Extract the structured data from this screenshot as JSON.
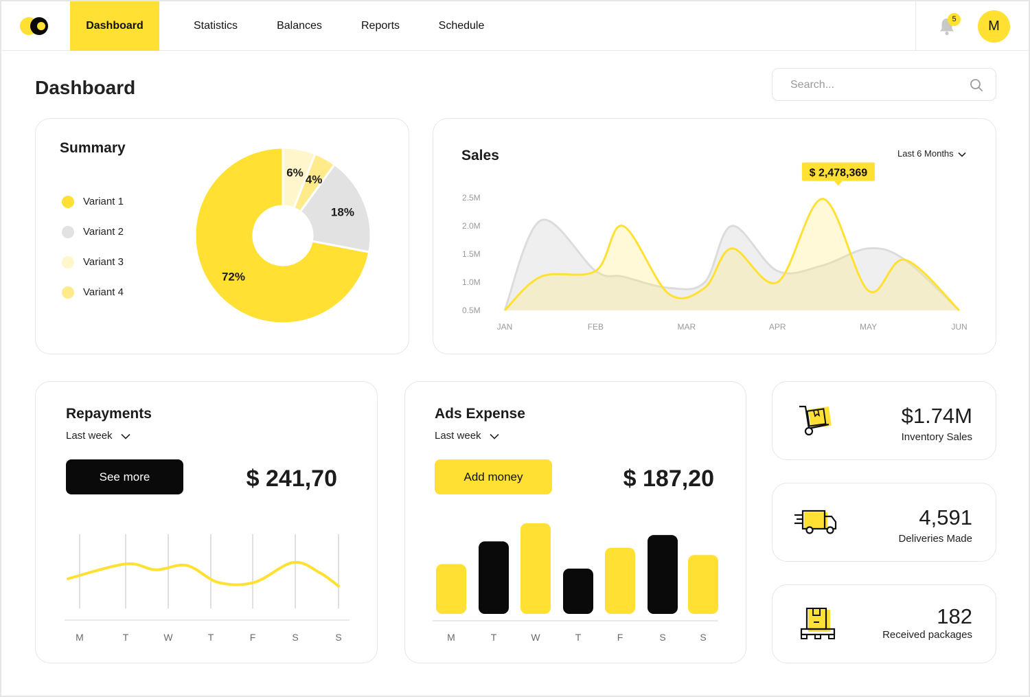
{
  "nav": {
    "items": [
      {
        "label": "Dashboard",
        "active": true
      },
      {
        "label": "Statistics",
        "active": false
      },
      {
        "label": "Balances",
        "active": false
      },
      {
        "label": "Reports",
        "active": false
      },
      {
        "label": "Schedule",
        "active": false
      }
    ],
    "notification_count": "5",
    "avatar_initial": "M"
  },
  "page": {
    "title": "Dashboard",
    "search_placeholder": "Search..."
  },
  "colors": {
    "accent": "#ffe033",
    "variant1": "#ffe033",
    "variant2": "#e2e2e2",
    "variant3": "#fff6cc",
    "variant4": "#ffeb8a",
    "black": "#0a0a0a"
  },
  "summary": {
    "title": "Summary",
    "legend": [
      "Variant 1",
      "Variant 2",
      "Variant 3",
      "Variant 4"
    ]
  },
  "sales": {
    "title": "Sales",
    "period": "Last 6 Months",
    "highlight_label": "$ 2,478,369"
  },
  "repayments": {
    "title": "Repayments",
    "period": "Last week",
    "button": "See more",
    "amount": "$ 241,70"
  },
  "ads": {
    "title": "Ads Expense",
    "period": "Last week",
    "button": "Add money",
    "amount": "$ 187,20"
  },
  "stats": [
    {
      "value": "$1.74M",
      "label": "Inventory Sales",
      "icon": "hand-truck-icon"
    },
    {
      "value": "4,591",
      "label": "Deliveries Made",
      "icon": "delivery-truck-icon"
    },
    {
      "value": "182",
      "label": "Received packages",
      "icon": "package-pallet-icon"
    }
  ],
  "chart_data": [
    {
      "type": "pie",
      "labels": [
        "72%",
        "18%",
        "4%",
        "6%"
      ],
      "values": [
        72,
        18,
        4,
        6
      ],
      "series_legend": [
        "Variant 1",
        "Variant 2",
        "Variant 4",
        "Variant 3"
      ],
      "colors": [
        "#ffe033",
        "#e2e2e2",
        "#ffeb8a",
        "#fff6cc"
      ],
      "donut": true
    },
    {
      "type": "area",
      "title": "Sales",
      "categories": [
        "JAN",
        "FEB",
        "MAR",
        "APR",
        "MAY",
        "JUN"
      ],
      "y_ticks": [
        "2.5M",
        "2.0M",
        "1.5M",
        "1.0M",
        "0.5M"
      ],
      "ylim": [
        0.5,
        2.5
      ],
      "x": [
        0,
        0.4,
        1,
        1.3,
        1.8,
        2.2,
        2.5,
        3.0,
        3.5,
        4.0,
        4.4,
        5.0
      ],
      "series": [
        {
          "values": [
            0.5,
            2.1,
            1.2,
            1.1,
            0.9,
            1.0,
            2.0,
            1.2,
            1.3,
            1.6,
            1.4,
            0.5
          ],
          "color": "#e8e8e8"
        },
        {
          "values": [
            0.5,
            1.1,
            1.2,
            2.0,
            0.8,
            0.9,
            1.6,
            1.0,
            2.48,
            0.85,
            1.4,
            0.5
          ],
          "color": "#ffe033"
        }
      ],
      "highlight": {
        "x": 3.7,
        "y": 2.48,
        "label": "$ 2,478,369"
      }
    },
    {
      "type": "line",
      "title": "Repayments",
      "categories": [
        "M",
        "T",
        "W",
        "T",
        "F",
        "S",
        "S"
      ],
      "values": [
        40,
        60,
        52,
        58,
        35,
        62,
        30
      ],
      "ylim": [
        0,
        100
      ],
      "color": "#ffe033",
      "grid": true
    },
    {
      "type": "bar",
      "title": "Ads Expense",
      "categories": [
        "M",
        "T",
        "W",
        "T",
        "F",
        "S",
        "S"
      ],
      "values": [
        55,
        80,
        100,
        50,
        73,
        87,
        65
      ],
      "colors": [
        "#ffe033",
        "#0a0a0a",
        "#ffe033",
        "#0a0a0a",
        "#ffe033",
        "#0a0a0a",
        "#ffe033"
      ],
      "ylim": [
        0,
        100
      ]
    }
  ]
}
